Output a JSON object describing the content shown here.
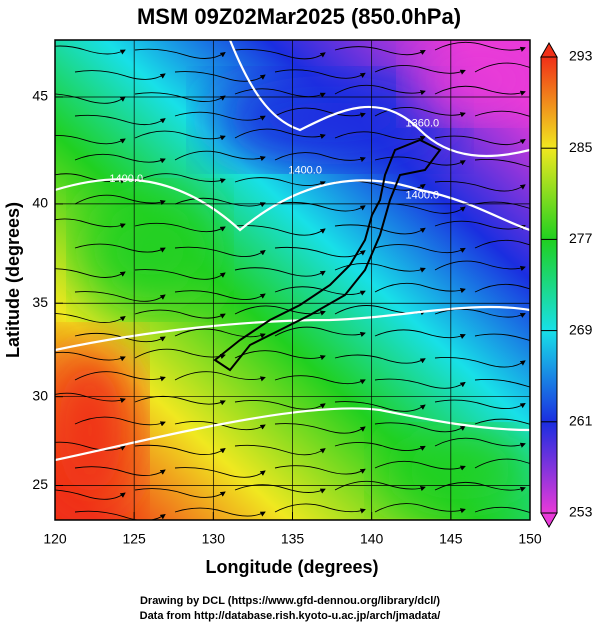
{
  "chart_data": {
    "type": "map",
    "title": "MSM 09Z02Mar2025 (850.0hPa)",
    "xlabel": "Longitude (degrees)",
    "ylabel": "Latitude  (degrees)",
    "xlim": [
      120,
      150
    ],
    "xticks": [
      120,
      125,
      130,
      135,
      140,
      145,
      150
    ],
    "ylim": [
      23,
      47.5
    ],
    "yticks": [
      25,
      30,
      35,
      40,
      45
    ],
    "grid": true,
    "colorbar": {
      "lim": [
        253,
        293
      ],
      "ticks": [
        253,
        261,
        269,
        277,
        285,
        293
      ],
      "colors": [
        "#e83ad8",
        "#1a2ee0",
        "#18e0e8",
        "#20d020",
        "#f0e820",
        "#f03018"
      ]
    },
    "contours": [
      {
        "value": 1400,
        "label": "1400.0",
        "lon": 124.5,
        "lat": 41.2
      },
      {
        "value": 1400,
        "label": "1400.0",
        "lon": 135.8,
        "lat": 41.6
      },
      {
        "value": 1400,
        "label": "1400.0",
        "lon": 143.2,
        "lat": 40.4
      },
      {
        "value": 1360,
        "label": "1360.0",
        "lon": 143.2,
        "lat": 43.8
      }
    ]
  },
  "footer": {
    "line1": "Drawing by DCL (https://www.gfd-dennou.org/library/dcl/)",
    "line2": "Data from http://database.rish.kyoto-u.ac.jp/arch/jmadata/"
  }
}
